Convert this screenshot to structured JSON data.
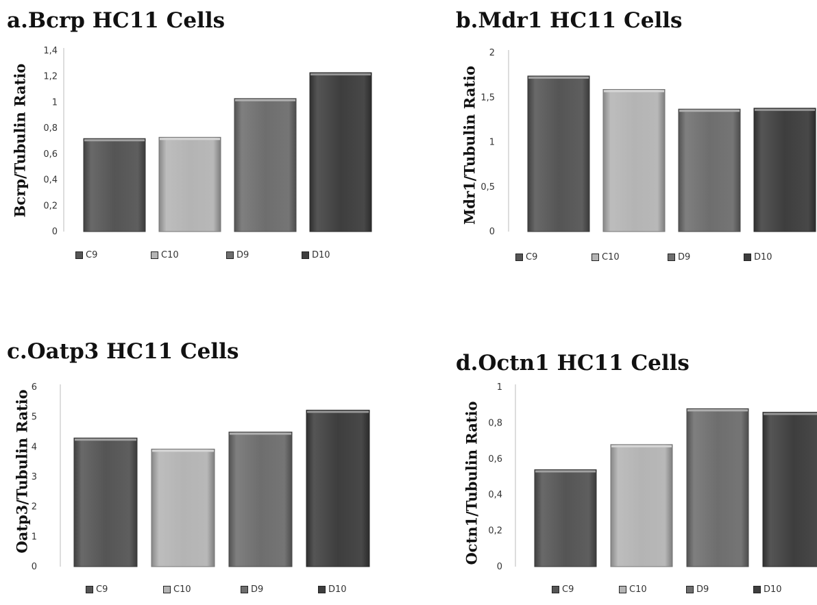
{
  "chart_data": [
    {
      "type": "bar",
      "title": "a.Bcrp HC11 Cells",
      "ylabel": "Bcrp/Tubulin Ratio",
      "categories": [
        "C9",
        "C10",
        "D9",
        "D10"
      ],
      "values": [
        0.72,
        0.73,
        1.03,
        1.23
      ],
      "ylim": [
        0,
        1.4
      ],
      "yticks": [
        "0",
        "0,2",
        "0,4",
        "0,6",
        "0,8",
        "1",
        "1,2",
        "1,4"
      ],
      "legend": [
        "C9",
        "C10",
        "D9",
        "D10"
      ],
      "legend_position": "bottom",
      "grid": false
    },
    {
      "type": "bar",
      "title": "b.Mdr1 HC11 Cells",
      "ylabel": "Mdr1/Tubulin Ratio",
      "categories": [
        "C9",
        "C10",
        "D9",
        "D10"
      ],
      "values": [
        1.74,
        1.59,
        1.37,
        1.38
      ],
      "ylim": [
        0,
        2
      ],
      "yticks": [
        "0",
        "0,5",
        "1",
        "1,5",
        "2"
      ],
      "legend": [
        "C9",
        "C10",
        "D9",
        "D10"
      ],
      "legend_position": "bottom",
      "grid": false
    },
    {
      "type": "bar",
      "title": "c.Oatp3 HC11 Cells",
      "ylabel": "Oatp3/Tubulin Ratio",
      "categories": [
        "C9",
        "C10",
        "D9",
        "D10"
      ],
      "values": [
        4.3,
        3.93,
        4.5,
        5.23
      ],
      "ylim": [
        0,
        6
      ],
      "yticks": [
        "0",
        "1",
        "2",
        "3",
        "4",
        "5",
        "6"
      ],
      "legend": [
        "C9",
        "C10",
        "D9",
        "D10"
      ],
      "legend_position": "bottom",
      "grid": false
    },
    {
      "type": "bar",
      "title": "d.Octn1 HC11 Cells",
      "ylabel": "Octn1/Tubulin Ratio",
      "categories": [
        "C9",
        "C10",
        "D9",
        "D10"
      ],
      "values": [
        0.54,
        0.68,
        0.88,
        0.86
      ],
      "ylim": [
        0,
        1
      ],
      "yticks": [
        "0",
        "0,2",
        "0,4",
        "0,6",
        "0,8",
        "1"
      ],
      "legend": [
        "C9",
        "C10",
        "D9",
        "D10"
      ],
      "legend_position": "bottom",
      "grid": false
    }
  ],
  "colors": {
    "C9": "#555555",
    "C10": "#b4b4b4",
    "D9": "#6e6e6e",
    "D10": "#3e3e3e"
  }
}
